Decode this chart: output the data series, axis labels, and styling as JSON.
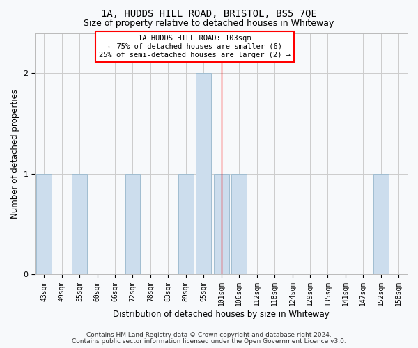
{
  "title": "1A, HUDDS HILL ROAD, BRISTOL, BS5 7QE",
  "subtitle": "Size of property relative to detached houses in Whiteway",
  "xlabel": "Distribution of detached houses by size in Whiteway",
  "ylabel": "Number of detached properties",
  "footnote1": "Contains HM Land Registry data © Crown copyright and database right 2024.",
  "footnote2": "Contains public sector information licensed under the Open Government Licence v3.0.",
  "categories": [
    "43sqm",
    "49sqm",
    "55sqm",
    "60sqm",
    "66sqm",
    "72sqm",
    "78sqm",
    "83sqm",
    "89sqm",
    "95sqm",
    "101sqm",
    "106sqm",
    "112sqm",
    "118sqm",
    "124sqm",
    "129sqm",
    "135sqm",
    "141sqm",
    "147sqm",
    "152sqm",
    "158sqm"
  ],
  "values": [
    1,
    0,
    1,
    0,
    0,
    1,
    0,
    0,
    1,
    2,
    1,
    1,
    0,
    0,
    0,
    0,
    0,
    0,
    0,
    1,
    0
  ],
  "bar_color": "#ccdded",
  "bar_edge_color": "#a0bdd0",
  "red_line_index": 10,
  "annotation_line1": "1A HUDDS HILL ROAD: 103sqm",
  "annotation_line2": "← 75% of detached houses are smaller (6)",
  "annotation_line3": "25% of semi-detached houses are larger (2) →",
  "ylim": [
    0,
    2.4
  ],
  "yticks": [
    0,
    1,
    2
  ],
  "background_color": "#f7f9fb",
  "grid_color": "#cccccc",
  "title_fontsize": 10,
  "subtitle_fontsize": 9,
  "axis_label_fontsize": 8.5,
  "tick_fontsize": 7,
  "annotation_fontsize": 7.5,
  "footnote_fontsize": 6.5
}
